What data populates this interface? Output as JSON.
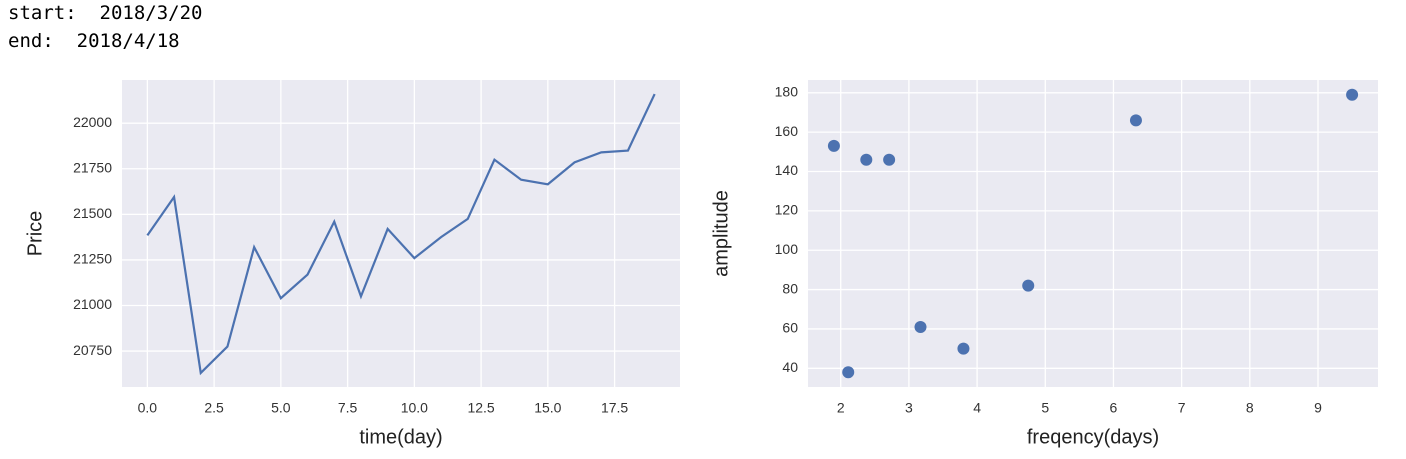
{
  "header_lines": [
    "start:  2018/3/20",
    "end:  2018/4/18"
  ],
  "chart_data": [
    {
      "type": "line",
      "xlabel": "time(day)",
      "ylabel": "Price",
      "color": "#4c72b0",
      "grid": true,
      "x": [
        0,
        1,
        2,
        3,
        4,
        5,
        6,
        7,
        8,
        9,
        10,
        11,
        12,
        13,
        14,
        15,
        16,
        17,
        18,
        19
      ],
      "values": [
        21385,
        21595,
        20630,
        20775,
        21320,
        21040,
        21170,
        21460,
        21050,
        21420,
        21260,
        21375,
        21475,
        21800,
        21690,
        21665,
        21785,
        21840,
        21850,
        22160
      ],
      "xlim": [
        -0.95,
        19.95
      ],
      "xticks": [
        {
          "value": 0,
          "label": "0.0"
        },
        2.5,
        {
          "value": 5,
          "label": "5.0"
        },
        7.5,
        {
          "value": 10,
          "label": "10.0"
        },
        12.5,
        {
          "value": 15,
          "label": "15.0"
        },
        17.5
      ],
      "ylim": [
        20553,
        22237
      ],
      "yticks": [
        20750,
        21000,
        21250,
        21500,
        21750,
        22000
      ]
    },
    {
      "type": "scatter",
      "xlabel": "freqency(days)",
      "ylabel": "amplitude",
      "color": "#4c72b0",
      "grid": true,
      "x": [
        1.9,
        2.11,
        2.375,
        2.71,
        3.17,
        3.8,
        4.75,
        6.33,
        9.5
      ],
      "values": [
        153,
        38,
        146,
        146,
        61,
        50,
        82,
        166,
        179
      ],
      "xlim": [
        1.52,
        9.88
      ],
      "xticks": [
        2,
        3,
        4,
        5,
        6,
        7,
        8,
        9
      ],
      "ylim": [
        30.5,
        186.5
      ],
      "yticks": [
        40,
        60,
        80,
        100,
        120,
        140,
        160,
        180
      ]
    }
  ]
}
